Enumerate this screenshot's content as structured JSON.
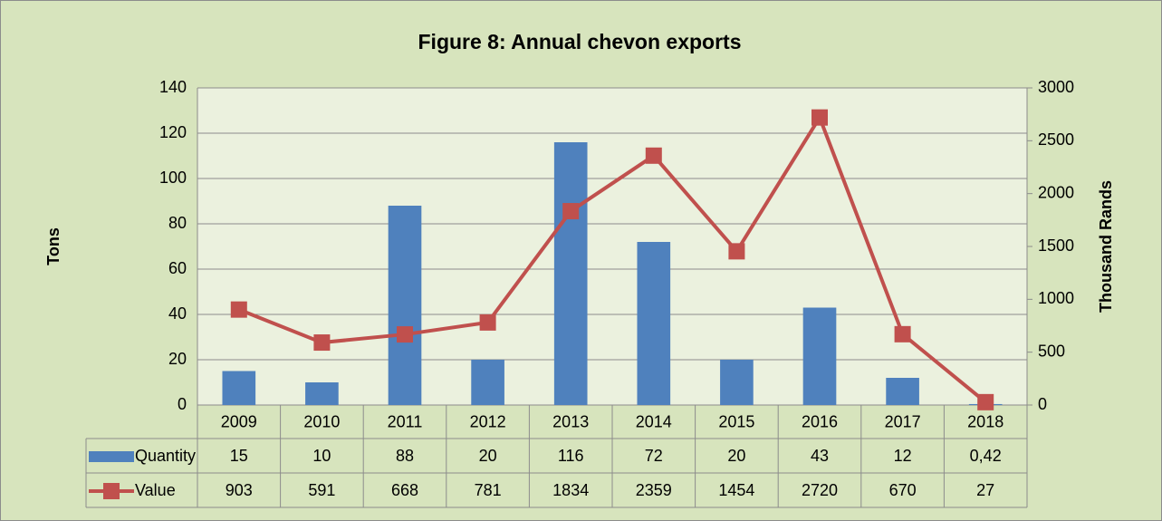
{
  "chart_data": {
    "type": "bar_line_table",
    "title": "Figure 8: Annual chevon exports",
    "y_label": "Tons",
    "y2_label": "Thousand Rands",
    "categories": [
      "2009",
      "2010",
      "2011",
      "2012",
      "2013",
      "2014",
      "2015",
      "2016",
      "2017",
      "2018"
    ],
    "series": [
      {
        "name": "Quantity",
        "type": "bar",
        "color": "#4f81bd",
        "values": [
          15,
          10,
          88,
          20,
          116,
          72,
          20,
          43,
          12,
          0.42
        ],
        "value_labels": [
          "15",
          "10",
          "88",
          "20",
          "116",
          "72",
          "20",
          "43",
          "12",
          "0,42"
        ]
      },
      {
        "name": "Value",
        "type": "line",
        "axis": "y2",
        "color": "#c0504d",
        "values": [
          903,
          591,
          668,
          781,
          1834,
          2359,
          1454,
          2720,
          670,
          27
        ]
      }
    ],
    "ylim": [
      0,
      140
    ],
    "yticks": [
      0,
      20,
      40,
      60,
      80,
      100,
      120,
      140
    ],
    "y2lim": [
      0,
      3000
    ],
    "y2ticks": [
      0,
      500,
      1000,
      1500,
      2000,
      2500,
      3000
    ],
    "grid": true
  }
}
